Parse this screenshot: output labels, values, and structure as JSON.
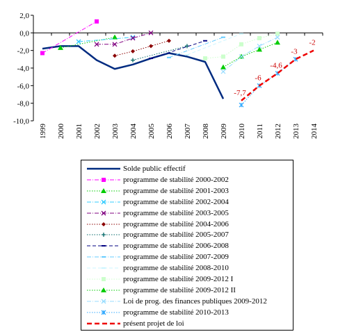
{
  "chart_data": {
    "type": "line",
    "title": "",
    "xlabel": "",
    "ylabel": "",
    "x": [
      "1999",
      "2000",
      "2001",
      "2002",
      "2003",
      "2004",
      "2005",
      "2006",
      "2007",
      "2008",
      "2009",
      "2010",
      "2011",
      "2012",
      "2013",
      "2014"
    ],
    "ylim": [
      -10,
      2
    ],
    "yticks": [
      "2,0",
      "0,0",
      "-2,0",
      "-4,0",
      "-6,0",
      "-8,0",
      "-10,0"
    ],
    "grid": false,
    "legend_position": "bottom",
    "series": [
      {
        "name": "Solde public effectif",
        "color": "#002b80",
        "style": "solid-thick",
        "marker": "none",
        "points": [
          [
            "1999",
            -1.8
          ],
          [
            "2000",
            -1.5
          ],
          [
            "2001",
            -1.5
          ],
          [
            "2002",
            -3.1
          ],
          [
            "2003",
            -4.1
          ],
          [
            "2004",
            -3.6
          ],
          [
            "2005",
            -2.9
          ],
          [
            "2006",
            -2.3
          ],
          [
            "2007",
            -2.7
          ],
          [
            "2008",
            -3.3
          ],
          [
            "2009",
            -7.5
          ]
        ]
      },
      {
        "name": "programme de stabilité 2000-2002",
        "color": "#ff00ff",
        "style": "dashdot",
        "marker": "square",
        "points": [
          [
            "1999",
            -2.3
          ],
          [
            "2002",
            1.3
          ]
        ]
      },
      {
        "name": "programme de stabilité 2001-2003",
        "color": "#00cc00",
        "style": "dotted",
        "marker": "triangle",
        "points": [
          [
            "2000",
            -1.7
          ],
          [
            "2003",
            -0.5
          ]
        ]
      },
      {
        "name": "programme de stabilité 2002-2004",
        "color": "#33ccff",
        "style": "dashdot",
        "marker": "x",
        "points": [
          [
            "2001",
            -1.0
          ],
          [
            "2004",
            -0.5
          ]
        ]
      },
      {
        "name": "programme de stabilité 2003-2005",
        "color": "#800080",
        "style": "dashdot",
        "marker": "x",
        "points": [
          [
            "2002",
            -1.3
          ],
          [
            "2003",
            -1.3
          ],
          [
            "2004",
            -0.6
          ],
          [
            "2005",
            0.0
          ]
        ]
      },
      {
        "name": "programme de stabilité 2004-2006",
        "color": "#8b0000",
        "style": "dotted",
        "marker": "dot",
        "points": [
          [
            "2003",
            -2.6
          ],
          [
            "2004",
            -2.1
          ],
          [
            "2005",
            -1.5
          ],
          [
            "2006",
            -0.9
          ]
        ]
      },
      {
        "name": "programme de stabilité 2005-2007",
        "color": "#006666",
        "style": "dotted",
        "marker": "plus",
        "points": [
          [
            "2004",
            -3.1
          ],
          [
            "2007",
            -1.5
          ]
        ]
      },
      {
        "name": "programme de stabilité 2006-2008",
        "color": "#000080",
        "style": "dashed",
        "marker": "dash",
        "points": [
          [
            "2005",
            -2.9
          ],
          [
            "2008",
            -0.9
          ]
        ]
      },
      {
        "name": "programme de stabilité 2007-2009",
        "color": "#66ccff",
        "style": "dashdot",
        "marker": "dash",
        "points": [
          [
            "2006",
            -2.8
          ],
          [
            "2009",
            -0.5
          ]
        ]
      },
      {
        "name": "programme de stabilité 2008-2010",
        "color": "#ccf5ff",
        "style": "dashed",
        "marker": "dash",
        "points": [
          [
            "2007",
            -2.5
          ],
          [
            "2010",
            -0.1
          ]
        ]
      },
      {
        "name": "programme de stabilité 2009-2012 I",
        "color": "#ccffcc",
        "style": "dotted",
        "marker": "square",
        "points": [
          [
            "2008",
            -2.9
          ],
          [
            "2009",
            -2.7
          ],
          [
            "2010",
            -1.3
          ],
          [
            "2011",
            -0.6
          ],
          [
            "2012",
            -0.1
          ]
        ]
      },
      {
        "name": "programme de stabilité 2009-2012 II",
        "color": "#00cc00",
        "style": "dotted",
        "marker": "triangle",
        "points": [
          [
            "2009",
            -3.9
          ],
          [
            "2010",
            -2.7
          ],
          [
            "2011",
            -1.9
          ],
          [
            "2012",
            -1.1
          ]
        ]
      },
      {
        "name": "Loi de prog. des finances publiques 2009-2012",
        "color": "#99ddff",
        "style": "dashdot",
        "marker": "x",
        "points": [
          [
            "2009",
            -4.4
          ],
          [
            "2010",
            -2.7
          ],
          [
            "2011",
            -1.5
          ],
          [
            "2012",
            -0.5
          ]
        ]
      },
      {
        "name": "programme de stabilité 2010-2013",
        "color": "#33aaff",
        "style": "dotted",
        "marker": "asterisk",
        "points": [
          [
            "2010",
            -8.2
          ],
          [
            "2011",
            -6.0
          ],
          [
            "2012",
            -4.6
          ],
          [
            "2013",
            -3.0
          ]
        ]
      },
      {
        "name": "présent projet de loi",
        "color": "#ee0000",
        "style": "dashed-thick",
        "marker": "none",
        "points": [
          [
            "2010",
            -7.7
          ],
          [
            "2011",
            -6.0
          ],
          [
            "2012",
            -4.6
          ],
          [
            "2013",
            -3.0
          ],
          [
            "2014",
            -2.0
          ]
        ]
      }
    ],
    "annotations": [
      {
        "text": "-7,7",
        "x": "2010",
        "y": -7.7
      },
      {
        "text": "-6",
        "x": "2011",
        "y": -6.0
      },
      {
        "text": "-4,6",
        "x": "2012",
        "y": -4.6
      },
      {
        "text": "-3",
        "x": "2013",
        "y": -3.0
      },
      {
        "text": "-2",
        "x": "2014",
        "y": -2.0
      }
    ]
  }
}
